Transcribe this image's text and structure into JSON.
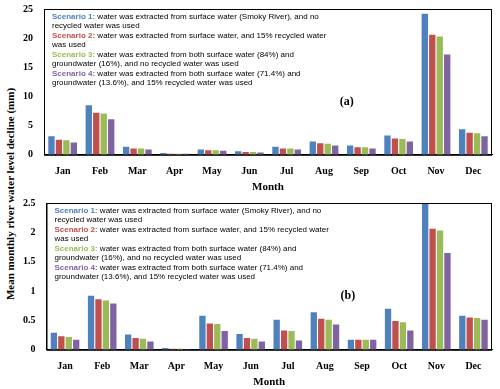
{
  "chart_data": [
    {
      "type": "bar",
      "title": "(a)",
      "ylabel": "Mean monthly river water level decline (mm)",
      "xlabel": "Month",
      "categories": [
        "Jan",
        "Feb",
        "Mar",
        "Apr",
        "May",
        "Jun",
        "Jul",
        "Aug",
        "Sep",
        "Oct",
        "Nov",
        "Dec"
      ],
      "series": [
        {
          "name": "Scenario 1: water was extracted from surface water (Smoky River), and no recycled water was used",
          "color": "#4f81bd",
          "values": [
            3.2,
            8.5,
            1.4,
            0.3,
            0.9,
            0.6,
            1.4,
            2.3,
            1.6,
            3.3,
            24.2,
            4.4
          ]
        },
        {
          "name": "Scenario 2: water was extracted from surface water, and 15% recycled water was used",
          "color": "#c0504d",
          "values": [
            2.6,
            7.2,
            1.1,
            0.2,
            0.8,
            0.5,
            1.1,
            2.0,
            1.3,
            2.8,
            20.6,
            3.8
          ]
        },
        {
          "name": "Scenario 3: water was extracted from both surface water (84%) and groundwater (16%), and no recycled water was used",
          "color": "#9bbb59",
          "values": [
            2.5,
            7.1,
            1.1,
            0.2,
            0.8,
            0.5,
            1.1,
            1.9,
            1.3,
            2.7,
            20.3,
            3.7
          ]
        },
        {
          "name": "Scenario 4: water was extracted from both surface water (71.4%) and groundwater (13.6%), and 15% recycled water was used",
          "color": "#8064a2",
          "values": [
            2.1,
            6.1,
            0.9,
            0.2,
            0.7,
            0.4,
            0.9,
            1.6,
            1.1,
            2.3,
            17.2,
            3.2
          ]
        }
      ],
      "ylim": [
        0,
        25
      ],
      "yticks": [
        0,
        5,
        10,
        15,
        20,
        25
      ],
      "grid": false,
      "legend": "upper left"
    },
    {
      "type": "bar",
      "title": "(b)",
      "xlabel": "Month",
      "categories": [
        "Jan",
        "Feb",
        "Mar",
        "Apr",
        "May",
        "Jun",
        "Jul",
        "Aug",
        "Sep",
        "Oct",
        "Nov",
        "Dec"
      ],
      "series": [
        {
          "name": "Scenario 1: water was extracted from surface water (Smoky River), and no recycled water was used",
          "color": "#4f81bd",
          "values": [
            0.29,
            0.92,
            0.26,
            0.03,
            0.58,
            0.27,
            0.51,
            0.64,
            0.17,
            0.7,
            2.5,
            0.58
          ]
        },
        {
          "name": "Scenario 2: water was extracted from surface water, and 15% recycled water was used",
          "color": "#c0504d",
          "values": [
            0.23,
            0.86,
            0.2,
            0.02,
            0.45,
            0.2,
            0.33,
            0.53,
            0.17,
            0.49,
            2.06,
            0.55
          ]
        },
        {
          "name": "Scenario 3: water was extracted from both surface water (84%) and groundwater (16%), and no recycled water was used",
          "color": "#9bbb59",
          "values": [
            0.22,
            0.84,
            0.19,
            0.02,
            0.44,
            0.19,
            0.32,
            0.51,
            0.17,
            0.47,
            2.03,
            0.54
          ]
        },
        {
          "name": "Scenario 4: water was extracted from both surface water (71.4%) and groundwater (13.6%), and 15% recycled water was used",
          "color": "#8064a2",
          "values": [
            0.17,
            0.79,
            0.14,
            0.01,
            0.32,
            0.14,
            0.16,
            0.43,
            0.17,
            0.33,
            1.65,
            0.51
          ]
        }
      ],
      "ylim": [
        0,
        2.5
      ],
      "yticks": [
        0,
        0.5,
        1,
        1.5,
        2,
        2.5
      ],
      "grid": false,
      "legend": "upper left"
    }
  ]
}
